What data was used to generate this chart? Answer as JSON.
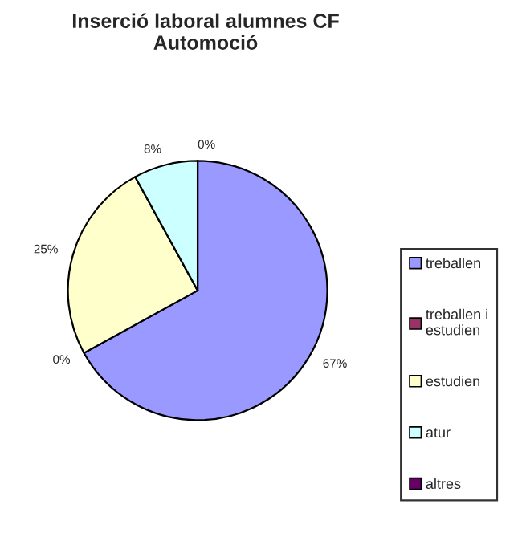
{
  "chart_data": {
    "type": "pie",
    "title": "Inserció laboral alumnes CF\nAutomoció",
    "categories": [
      "treballen",
      "treballen i estudien",
      "estudien",
      "atur",
      "altres"
    ],
    "values": [
      67,
      0,
      25,
      8,
      0
    ],
    "colors": [
      "#9999ff",
      "#993366",
      "#ffffcc",
      "#ccffff",
      "#660066"
    ],
    "value_labels": [
      "67%",
      "0%",
      "25%",
      "8%",
      "0%"
    ],
    "legend": "right"
  }
}
